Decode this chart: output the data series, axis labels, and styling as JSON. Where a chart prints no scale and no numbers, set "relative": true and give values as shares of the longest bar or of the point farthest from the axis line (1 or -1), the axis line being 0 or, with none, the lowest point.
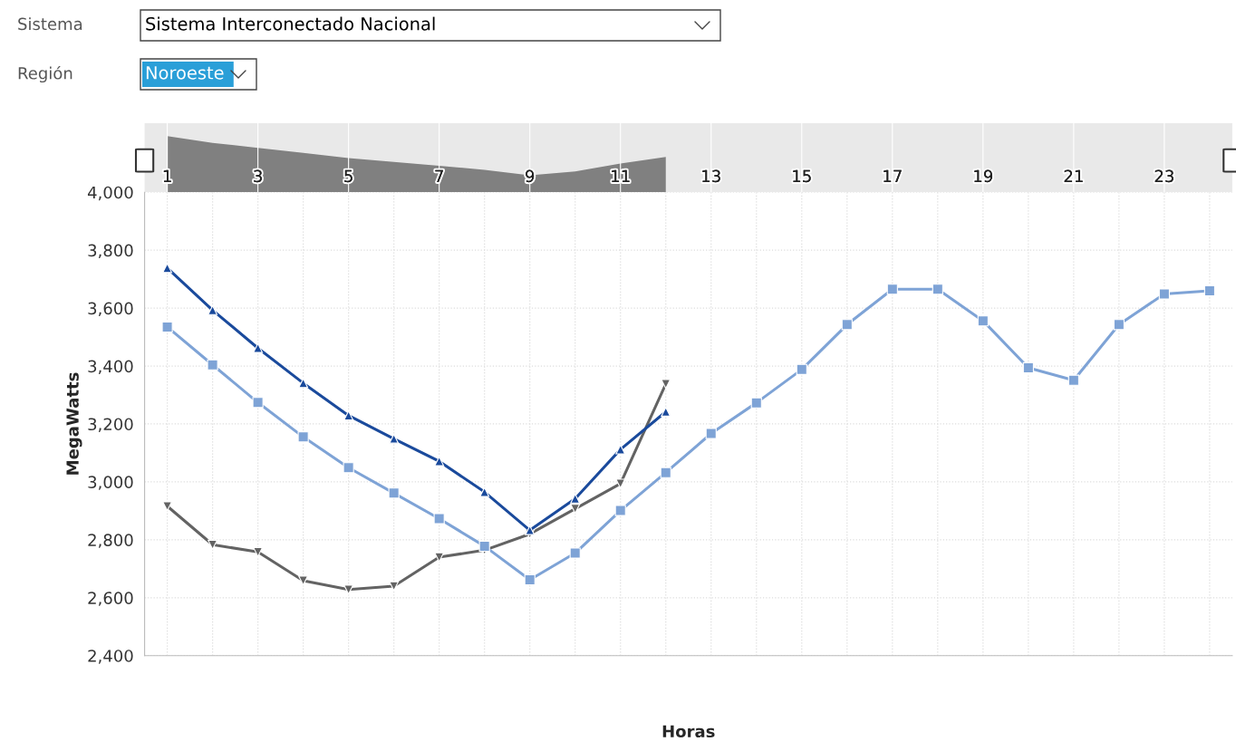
{
  "chart_data": [
    {
      "type": "area",
      "relative": true,
      "x": [
        1,
        2,
        3,
        4,
        5,
        6,
        7,
        8,
        9,
        10,
        11,
        12
      ],
      "values": [
        1,
        0.88,
        0.79,
        0.7,
        0.61,
        0.54,
        0.47,
        0.4,
        0.3,
        0.37,
        0.51,
        0.63
      ],
      "color": "#808080",
      "xlim": [
        0.5,
        24.5
      ],
      "xticks": [
        1,
        3,
        5,
        7,
        9,
        11,
        13,
        15,
        17,
        19,
        21,
        23
      ],
      "tick_labels": "x",
      "grid": "x",
      "annotations": [
        "Sistema",
        "Sistema Interconectado Nacional",
        "Región",
        "Noroeste"
      ]
    },
    {
      "type": "line",
      "xlabel": "Horas",
      "ylabel": "MegaWatts",
      "xlim": [
        0.5,
        24.5
      ],
      "ylim": [
        2400,
        4000
      ],
      "xticks": [
        {
          "value": 1,
          "label": null
        },
        {
          "value": 2,
          "label": null
        },
        {
          "value": 3,
          "label": null
        },
        {
          "value": 4,
          "label": null
        },
        {
          "value": 5,
          "label": null
        },
        {
          "value": 6,
          "label": null
        },
        {
          "value": 7,
          "label": null
        },
        {
          "value": 8,
          "label": null
        },
        {
          "value": 9,
          "label": null
        },
        {
          "value": 10,
          "label": null
        },
        {
          "value": 11,
          "label": null
        },
        {
          "value": 12,
          "label": null
        },
        {
          "value": 13,
          "label": null
        },
        {
          "value": 14,
          "label": null
        },
        {
          "value": 15,
          "label": null
        },
        {
          "value": 16,
          "label": null
        },
        {
          "value": 17,
          "label": null
        },
        {
          "value": 18,
          "label": null
        },
        {
          "value": 19,
          "label": null
        },
        {
          "value": 20,
          "label": null
        },
        {
          "value": 21,
          "label": null
        },
        {
          "value": 22,
          "label": null
        },
        {
          "value": 23,
          "label": null
        },
        {
          "value": 24,
          "label": null
        }
      ],
      "yticks": [
        {
          "value": 2400,
          "label": "2,400"
        },
        {
          "value": 2600,
          "label": "2,600"
        },
        {
          "value": 2800,
          "label": "2,800"
        },
        {
          "value": 3000,
          "label": "3,000"
        },
        {
          "value": 3200,
          "label": "3,200"
        },
        {
          "value": 3400,
          "label": "3,400"
        },
        {
          "value": 3600,
          "label": "3,600"
        },
        {
          "value": 3800,
          "label": "3,800"
        },
        {
          "value": 4000,
          "label": "4,000"
        }
      ],
      "tick_labels": "y",
      "grid": true,
      "legend": false,
      "series": [
        {
          "color": "#7ea3d6",
          "marker": "square",
          "x": [
            1,
            2,
            3,
            4,
            5,
            6,
            7,
            8,
            9,
            10,
            11,
            12,
            13,
            14,
            15,
            16,
            17,
            18,
            19,
            20,
            21,
            22,
            23,
            24
          ],
          "values": [
            3535,
            3404,
            3274,
            3155,
            3049,
            2961,
            2873,
            2778,
            2662,
            2754,
            2901,
            3032,
            3167,
            3273,
            3388,
            3543,
            3665,
            3665,
            3556,
            3394,
            3351,
            3543,
            3649,
            3660
          ]
        },
        {
          "color": "#1a4a9c",
          "marker": "triangle",
          "x": [
            1,
            2,
            3,
            4,
            5,
            6,
            7,
            8,
            9,
            10,
            11,
            12
          ],
          "values": [
            3738,
            3593,
            3462,
            3341,
            3229,
            3149,
            3071,
            2965,
            2833,
            2942,
            3112,
            3242
          ]
        },
        {
          "color": "#636363",
          "marker": "triangle_down",
          "x": [
            1,
            2,
            3,
            4,
            5,
            6,
            7,
            8,
            9,
            10,
            11,
            12
          ],
          "values": [
            2916,
            2783,
            2758,
            2659,
            2628,
            2640,
            2740,
            2764,
            2820,
            2907,
            2994,
            3338
          ]
        }
      ]
    }
  ]
}
